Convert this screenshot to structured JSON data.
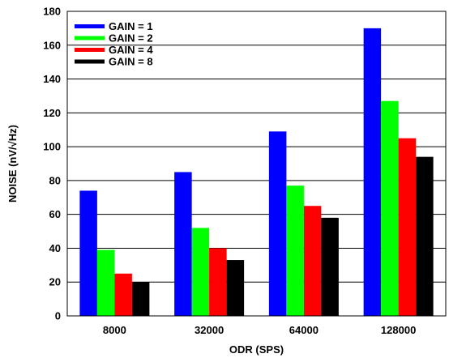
{
  "chart_data": {
    "type": "bar",
    "title": "",
    "xlabel": "ODR (SPS)",
    "ylabel": "NOISE (nV/√Hz)",
    "ylim": [
      0,
      180
    ],
    "yticks": [
      0,
      20,
      40,
      60,
      80,
      100,
      120,
      140,
      160,
      180
    ],
    "categories": [
      "8000",
      "32000",
      "64000",
      "128000"
    ],
    "grid": "horizontal",
    "legend_position": "top-left",
    "series": [
      {
        "name": "GAIN = 1",
        "color": "#0000ff",
        "values": [
          74,
          85,
          109,
          170
        ]
      },
      {
        "name": "GAIN = 2",
        "color": "#00ff00",
        "values": [
          39,
          52,
          77,
          127
        ]
      },
      {
        "name": "GAIN = 4",
        "color": "#ff0000",
        "values": [
          25,
          40,
          65,
          105
        ]
      },
      {
        "name": "GAIN = 8",
        "color": "#000000",
        "values": [
          20,
          33,
          58,
          94
        ]
      }
    ]
  }
}
